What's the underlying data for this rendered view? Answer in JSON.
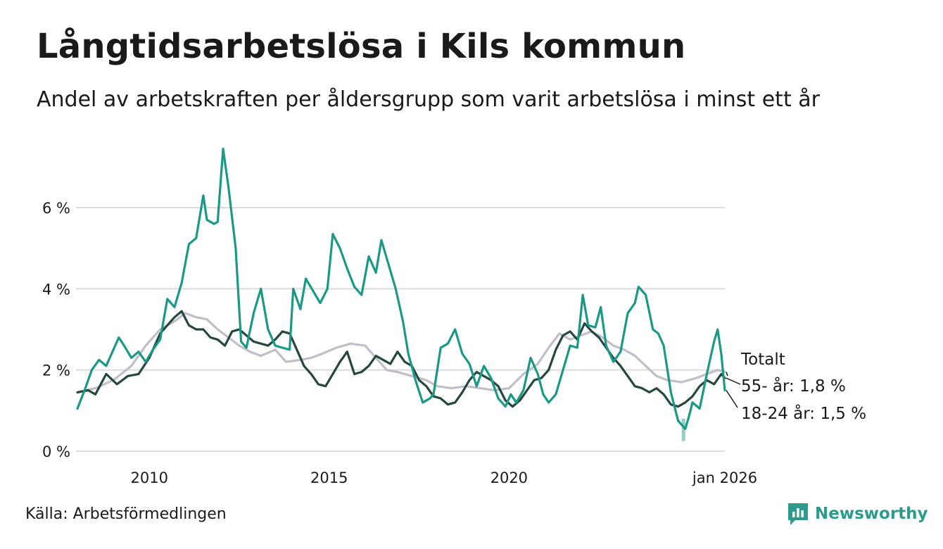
{
  "title": "Långtidsarbetslösa i Kils kommun",
  "subtitle": "Andel av arbetskraften per åldersgrupp som varit arbetslösa i minst ett år",
  "source": "Källa: Arbetsförmedlingen",
  "brand": "Newsworthy",
  "colors": {
    "teal": "#1a9987",
    "dark": "#24483e",
    "grey": "#c2bdca",
    "grid": "#dcdcdc",
    "brand": "#2c9a8c"
  },
  "chart_data": {
    "type": "line",
    "title": "Långtidsarbetslösa i Kils kommun",
    "xlabel": "",
    "ylabel": "",
    "xlim": [
      2008.0,
      2026.0
    ],
    "ylim": [
      0,
      7.5
    ],
    "y_ticks": [
      0,
      2,
      4,
      6
    ],
    "y_tick_labels": [
      "0 %",
      "2 %",
      "4 %",
      "6 %"
    ],
    "x_ticks": [
      2010,
      2015,
      2020,
      2026.0
    ],
    "x_tick_labels": [
      "2010",
      "2015",
      "2020",
      "jan 2026"
    ],
    "grid": true,
    "series": [
      {
        "name": "Totalt",
        "label": "Totalt",
        "color": "#c2bdca",
        "points": [
          [
            2008.0,
            1.45
          ],
          [
            2008.5,
            1.55
          ],
          [
            2009.0,
            1.75
          ],
          [
            2009.5,
            2.1
          ],
          [
            2009.9,
            2.6
          ],
          [
            2010.3,
            3.0
          ],
          [
            2010.7,
            3.2
          ],
          [
            2011.0,
            3.4
          ],
          [
            2011.3,
            3.3
          ],
          [
            2011.6,
            3.25
          ],
          [
            2011.9,
            3.0
          ],
          [
            2012.2,
            2.8
          ],
          [
            2012.5,
            2.6
          ],
          [
            2012.8,
            2.45
          ],
          [
            2013.1,
            2.35
          ],
          [
            2013.5,
            2.5
          ],
          [
            2013.8,
            2.2
          ],
          [
            2014.2,
            2.25
          ],
          [
            2014.5,
            2.3
          ],
          [
            2014.8,
            2.4
          ],
          [
            2015.2,
            2.55
          ],
          [
            2015.6,
            2.65
          ],
          [
            2016.0,
            2.6
          ],
          [
            2016.3,
            2.3
          ],
          [
            2016.6,
            2.0
          ],
          [
            2016.9,
            1.95
          ],
          [
            2017.3,
            1.85
          ],
          [
            2017.7,
            1.75
          ],
          [
            2018.0,
            1.6
          ],
          [
            2018.4,
            1.55
          ],
          [
            2018.8,
            1.6
          ],
          [
            2019.2,
            1.55
          ],
          [
            2019.6,
            1.5
          ],
          [
            2020.0,
            1.55
          ],
          [
            2020.4,
            1.9
          ],
          [
            2020.8,
            2.15
          ],
          [
            2021.1,
            2.55
          ],
          [
            2021.4,
            2.9
          ],
          [
            2021.7,
            2.75
          ],
          [
            2022.0,
            2.85
          ],
          [
            2022.3,
            2.95
          ],
          [
            2022.6,
            2.8
          ],
          [
            2022.9,
            2.6
          ],
          [
            2023.2,
            2.5
          ],
          [
            2023.5,
            2.35
          ],
          [
            2023.8,
            2.1
          ],
          [
            2024.1,
            1.85
          ],
          [
            2024.4,
            1.75
          ],
          [
            2024.8,
            1.7
          ],
          [
            2025.2,
            1.8
          ],
          [
            2025.5,
            1.9
          ],
          [
            2025.8,
            2.0
          ],
          [
            2026.0,
            1.95
          ]
        ]
      },
      {
        "name": "55- år",
        "label": "55- år: 1,8 %",
        "color": "#24483e",
        "points": [
          [
            2008.0,
            1.45
          ],
          [
            2008.3,
            1.5
          ],
          [
            2008.5,
            1.4
          ],
          [
            2008.8,
            1.9
          ],
          [
            2009.1,
            1.65
          ],
          [
            2009.4,
            1.85
          ],
          [
            2009.7,
            1.9
          ],
          [
            2010.0,
            2.3
          ],
          [
            2010.3,
            2.9
          ],
          [
            2010.5,
            3.1
          ],
          [
            2010.7,
            3.3
          ],
          [
            2010.9,
            3.45
          ],
          [
            2011.1,
            3.1
          ],
          [
            2011.3,
            3.0
          ],
          [
            2011.5,
            3.0
          ],
          [
            2011.7,
            2.8
          ],
          [
            2011.9,
            2.75
          ],
          [
            2012.1,
            2.6
          ],
          [
            2012.3,
            2.95
          ],
          [
            2012.5,
            3.0
          ],
          [
            2012.7,
            2.85
          ],
          [
            2012.9,
            2.7
          ],
          [
            2013.1,
            2.65
          ],
          [
            2013.3,
            2.6
          ],
          [
            2013.5,
            2.75
          ],
          [
            2013.7,
            2.95
          ],
          [
            2013.9,
            2.9
          ],
          [
            2014.1,
            2.5
          ],
          [
            2014.3,
            2.1
          ],
          [
            2014.5,
            1.9
          ],
          [
            2014.7,
            1.65
          ],
          [
            2014.9,
            1.6
          ],
          [
            2015.1,
            1.9
          ],
          [
            2015.3,
            2.2
          ],
          [
            2015.5,
            2.45
          ],
          [
            2015.7,
            1.9
          ],
          [
            2015.9,
            1.95
          ],
          [
            2016.1,
            2.1
          ],
          [
            2016.3,
            2.35
          ],
          [
            2016.5,
            2.25
          ],
          [
            2016.7,
            2.15
          ],
          [
            2016.9,
            2.45
          ],
          [
            2017.1,
            2.2
          ],
          [
            2017.3,
            2.1
          ],
          [
            2017.5,
            1.75
          ],
          [
            2017.7,
            1.6
          ],
          [
            2017.9,
            1.35
          ],
          [
            2018.1,
            1.3
          ],
          [
            2018.3,
            1.15
          ],
          [
            2018.5,
            1.2
          ],
          [
            2018.7,
            1.45
          ],
          [
            2018.9,
            1.75
          ],
          [
            2019.1,
            1.95
          ],
          [
            2019.3,
            1.85
          ],
          [
            2019.5,
            1.75
          ],
          [
            2019.7,
            1.6
          ],
          [
            2019.9,
            1.25
          ],
          [
            2020.1,
            1.1
          ],
          [
            2020.3,
            1.25
          ],
          [
            2020.5,
            1.5
          ],
          [
            2020.7,
            1.75
          ],
          [
            2020.9,
            1.8
          ],
          [
            2021.1,
            2.0
          ],
          [
            2021.3,
            2.5
          ],
          [
            2021.5,
            2.85
          ],
          [
            2021.7,
            2.95
          ],
          [
            2021.9,
            2.75
          ],
          [
            2022.1,
            3.15
          ],
          [
            2022.3,
            2.95
          ],
          [
            2022.5,
            2.8
          ],
          [
            2022.7,
            2.55
          ],
          [
            2022.9,
            2.3
          ],
          [
            2023.1,
            2.1
          ],
          [
            2023.3,
            1.85
          ],
          [
            2023.5,
            1.6
          ],
          [
            2023.7,
            1.55
          ],
          [
            2023.9,
            1.45
          ],
          [
            2024.1,
            1.55
          ],
          [
            2024.3,
            1.4
          ],
          [
            2024.5,
            1.15
          ],
          [
            2024.7,
            1.1
          ],
          [
            2024.9,
            1.2
          ],
          [
            2025.1,
            1.35
          ],
          [
            2025.3,
            1.6
          ],
          [
            2025.5,
            1.75
          ],
          [
            2025.7,
            1.65
          ],
          [
            2025.9,
            1.9
          ],
          [
            2026.0,
            1.8
          ]
        ]
      },
      {
        "name": "18-24 år",
        "label": "18-24 år: 1,5 %",
        "color": "#1a9987",
        "points": [
          [
            2008.0,
            1.05
          ],
          [
            2008.2,
            1.5
          ],
          [
            2008.4,
            2.0
          ],
          [
            2008.6,
            2.25
          ],
          [
            2008.8,
            2.1
          ],
          [
            2009.0,
            2.5
          ],
          [
            2009.15,
            2.8
          ],
          [
            2009.3,
            2.6
          ],
          [
            2009.5,
            2.3
          ],
          [
            2009.7,
            2.45
          ],
          [
            2009.9,
            2.2
          ],
          [
            2010.1,
            2.5
          ],
          [
            2010.3,
            2.75
          ],
          [
            2010.5,
            3.75
          ],
          [
            2010.7,
            3.55
          ],
          [
            2010.9,
            4.15
          ],
          [
            2011.1,
            5.1
          ],
          [
            2011.3,
            5.25
          ],
          [
            2011.5,
            6.3
          ],
          [
            2011.6,
            5.7
          ],
          [
            2011.8,
            5.6
          ],
          [
            2011.9,
            5.65
          ],
          [
            2012.05,
            7.45
          ],
          [
            2012.2,
            6.5
          ],
          [
            2012.4,
            5.0
          ],
          [
            2012.55,
            2.7
          ],
          [
            2012.7,
            2.55
          ],
          [
            2012.9,
            3.4
          ],
          [
            2013.1,
            4.0
          ],
          [
            2013.3,
            3.0
          ],
          [
            2013.5,
            2.6
          ],
          [
            2013.7,
            2.55
          ],
          [
            2013.9,
            2.5
          ],
          [
            2014.0,
            4.0
          ],
          [
            2014.2,
            3.5
          ],
          [
            2014.35,
            4.25
          ],
          [
            2014.55,
            3.95
          ],
          [
            2014.75,
            3.65
          ],
          [
            2014.95,
            4.0
          ],
          [
            2015.1,
            5.35
          ],
          [
            2015.3,
            5.0
          ],
          [
            2015.5,
            4.5
          ],
          [
            2015.7,
            4.05
          ],
          [
            2015.9,
            3.85
          ],
          [
            2016.1,
            4.8
          ],
          [
            2016.3,
            4.4
          ],
          [
            2016.45,
            5.2
          ],
          [
            2016.65,
            4.6
          ],
          [
            2016.85,
            4.0
          ],
          [
            2017.05,
            3.2
          ],
          [
            2017.2,
            2.4
          ],
          [
            2017.4,
            1.75
          ],
          [
            2017.6,
            1.2
          ],
          [
            2017.8,
            1.3
          ],
          [
            2017.9,
            1.4
          ],
          [
            2018.1,
            2.55
          ],
          [
            2018.3,
            2.65
          ],
          [
            2018.5,
            3.0
          ],
          [
            2018.7,
            2.4
          ],
          [
            2018.9,
            2.15
          ],
          [
            2019.1,
            1.6
          ],
          [
            2019.3,
            2.1
          ],
          [
            2019.5,
            1.8
          ],
          [
            2019.7,
            1.3
          ],
          [
            2019.9,
            1.1
          ],
          [
            2020.05,
            1.4
          ],
          [
            2020.2,
            1.2
          ],
          [
            2020.4,
            1.5
          ],
          [
            2020.6,
            2.3
          ],
          [
            2020.8,
            1.9
          ],
          [
            2020.95,
            1.4
          ],
          [
            2021.1,
            1.2
          ],
          [
            2021.3,
            1.4
          ],
          [
            2021.5,
            2.0
          ],
          [
            2021.7,
            2.6
          ],
          [
            2021.9,
            2.55
          ],
          [
            2022.05,
            3.85
          ],
          [
            2022.2,
            3.1
          ],
          [
            2022.4,
            3.05
          ],
          [
            2022.55,
            3.55
          ],
          [
            2022.7,
            2.6
          ],
          [
            2022.9,
            2.2
          ],
          [
            2023.1,
            2.45
          ],
          [
            2023.3,
            3.4
          ],
          [
            2023.5,
            3.65
          ],
          [
            2023.6,
            4.05
          ],
          [
            2023.8,
            3.85
          ],
          [
            2024.0,
            3.0
          ],
          [
            2024.15,
            2.9
          ],
          [
            2024.3,
            2.6
          ],
          [
            2024.5,
            1.45
          ],
          [
            2024.7,
            0.75
          ],
          [
            2024.9,
            0.55
          ],
          [
            2025.0,
            0.85
          ],
          [
            2025.1,
            1.2
          ],
          [
            2025.3,
            1.05
          ],
          [
            2025.5,
            1.9
          ],
          [
            2025.7,
            2.7
          ],
          [
            2025.8,
            3.0
          ],
          [
            2025.9,
            2.4
          ],
          [
            2026.0,
            1.5
          ]
        ]
      }
    ],
    "dip_marker": {
      "x": 2024.85,
      "y_from": 0.8,
      "y_to": 0.25
    }
  }
}
